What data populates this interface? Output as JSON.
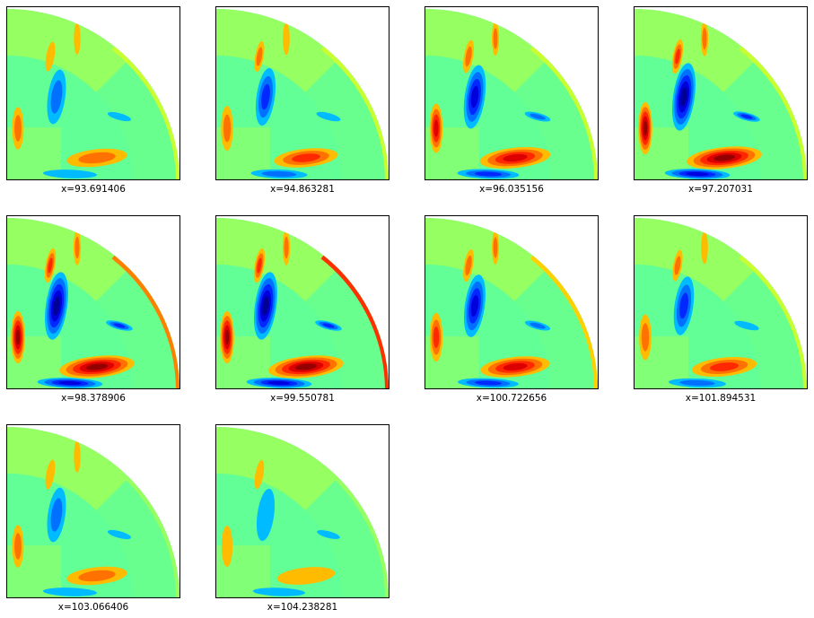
{
  "chart_data": [
    {
      "type": "heatmap",
      "xlabel": "x=93.691406",
      "intensity": 0.35,
      "colors": {
        "background": "#62ff96",
        "outer": "#96ff62",
        "edge": "#c8ff30"
      }
    },
    {
      "type": "heatmap",
      "xlabel": "x=94.863281",
      "intensity": 0.5,
      "colors": {
        "background": "#62ff96",
        "outer": "#96ff62",
        "edge": "#c8ff30"
      }
    },
    {
      "type": "heatmap",
      "xlabel": "x=96.035156",
      "intensity": 0.8,
      "colors": {
        "background": "#62ff96",
        "outer": "#96ff62",
        "edge": "#c8ff30"
      }
    },
    {
      "type": "heatmap",
      "xlabel": "x=97.207031",
      "intensity": 1.0,
      "colors": {
        "background": "#62ff96",
        "outer": "#96ff62",
        "edge": "#c8ff30"
      }
    },
    {
      "type": "heatmap",
      "xlabel": "x=98.378906",
      "intensity": 1.0,
      "colors": {
        "background": "#62ff96",
        "outer": "#96ff62",
        "edge": "#ff8000"
      }
    },
    {
      "type": "heatmap",
      "xlabel": "x=99.550781",
      "intensity": 1.0,
      "colors": {
        "background": "#62ff96",
        "outer": "#96ff62",
        "edge": "#ff3000"
      }
    },
    {
      "type": "heatmap",
      "xlabel": "x=100.722656",
      "intensity": 0.75,
      "colors": {
        "background": "#62ff96",
        "outer": "#96ff62",
        "edge": "#ffd000"
      }
    },
    {
      "type": "heatmap",
      "xlabel": "x=101.894531",
      "intensity": 0.55,
      "colors": {
        "background": "#62ff96",
        "outer": "#96ff62",
        "edge": "#c8ff30"
      }
    },
    {
      "type": "heatmap",
      "xlabel": "x=103.066406",
      "intensity": 0.35,
      "colors": {
        "background": "#62ff96",
        "outer": "#96ff62",
        "edge": "#96ff62"
      }
    },
    {
      "type": "heatmap",
      "xlabel": "x=104.238281",
      "intensity": 0.25,
      "colors": {
        "background": "#62ff96",
        "outer": "#96ff62",
        "edge": "#96ff62"
      }
    }
  ]
}
